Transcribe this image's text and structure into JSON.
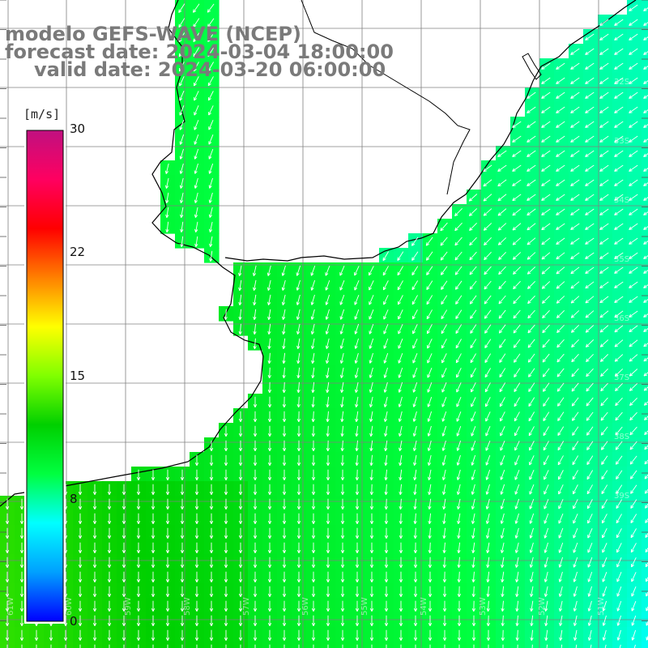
{
  "title": {
    "line1": "modelo GEFS-WAVE (NCEP)",
    "line2": "forecast date: 2024-03-04 18:00:00",
    "line3": "valid date: 2024-03-20 06:00:00"
  },
  "legend": {
    "unit": "[m/s]",
    "min": 0,
    "max": 30,
    "tick_labels": [
      "30",
      "22",
      "15",
      "8",
      "0"
    ],
    "colors": [
      "#0000ff",
      "#00a0ff",
      "#00ffff",
      "#00ff40",
      "#00d000",
      "#80ff00",
      "#ffff00",
      "#ff8000",
      "#ff0000",
      "#ff0060",
      "#c01080"
    ]
  },
  "map": {
    "lat_labels": [
      "32S",
      "33S",
      "34S",
      "35S",
      "36S",
      "37S",
      "38S",
      "39S"
    ],
    "lon_labels": [
      "61W",
      "60W",
      "59W",
      "58W",
      "57W",
      "56W",
      "55W",
      "54W",
      "53W",
      "52W",
      "51W"
    ],
    "land_color": "#ffffff",
    "coast_color": "#000000",
    "grid_color": "#808080",
    "vector_color": "#ffffff"
  }
}
